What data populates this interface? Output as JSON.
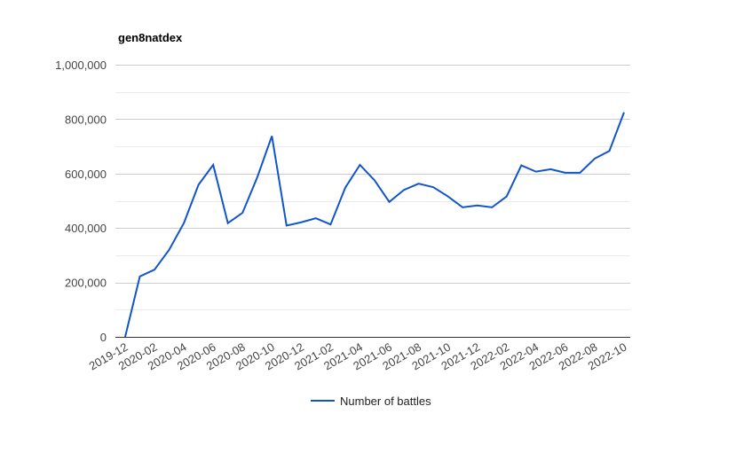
{
  "chart_data": {
    "type": "line",
    "title": "gen8natdex",
    "xlabel": "",
    "ylabel": "",
    "ylim": [
      0,
      1000000
    ],
    "y_ticks": [
      "0",
      "200,000",
      "400,000",
      "600,000",
      "800,000",
      "1,000,000"
    ],
    "y_tick_values": [
      0,
      200000,
      400000,
      600000,
      800000,
      1000000
    ],
    "grid": true,
    "legend_position": "bottom",
    "x": [
      "2019-12",
      "2020-01",
      "2020-02",
      "2020-03",
      "2020-04",
      "2020-05",
      "2020-06",
      "2020-07",
      "2020-08",
      "2020-09",
      "2020-10",
      "2020-11",
      "2020-12",
      "2021-01",
      "2021-02",
      "2021-03",
      "2021-04",
      "2021-05",
      "2021-06",
      "2021-07",
      "2021-08",
      "2021-09",
      "2021-10",
      "2021-11",
      "2021-12",
      "2022-01",
      "2022-02",
      "2022-03",
      "2022-04",
      "2022-05",
      "2022-06",
      "2022-07",
      "2022-08",
      "2022-09",
      "2022-10"
    ],
    "x_tick_labels": [
      "2019-12",
      "2020-02",
      "2020-04",
      "2020-06",
      "2020-08",
      "2020-10",
      "2020-12",
      "2021-02",
      "2021-04",
      "2021-06",
      "2021-08",
      "2021-10",
      "2021-12",
      "2022-02",
      "2022-04",
      "2022-06",
      "2022-08",
      "2022-10"
    ],
    "series": [
      {
        "name": "Number of battles",
        "color": "#1155cc",
        "values": [
          0,
          222000,
          247000,
          320000,
          418000,
          559000,
          632000,
          418000,
          456000,
          586000,
          738000,
          409000,
          421000,
          436000,
          413000,
          548000,
          632000,
          575000,
          496000,
          540000,
          563000,
          550000,
          516000,
          476000,
          483000,
          476000,
          516000,
          630000,
          607000,
          616000,
          603000,
          603000,
          655000,
          683000,
          825000
        ]
      }
    ]
  }
}
